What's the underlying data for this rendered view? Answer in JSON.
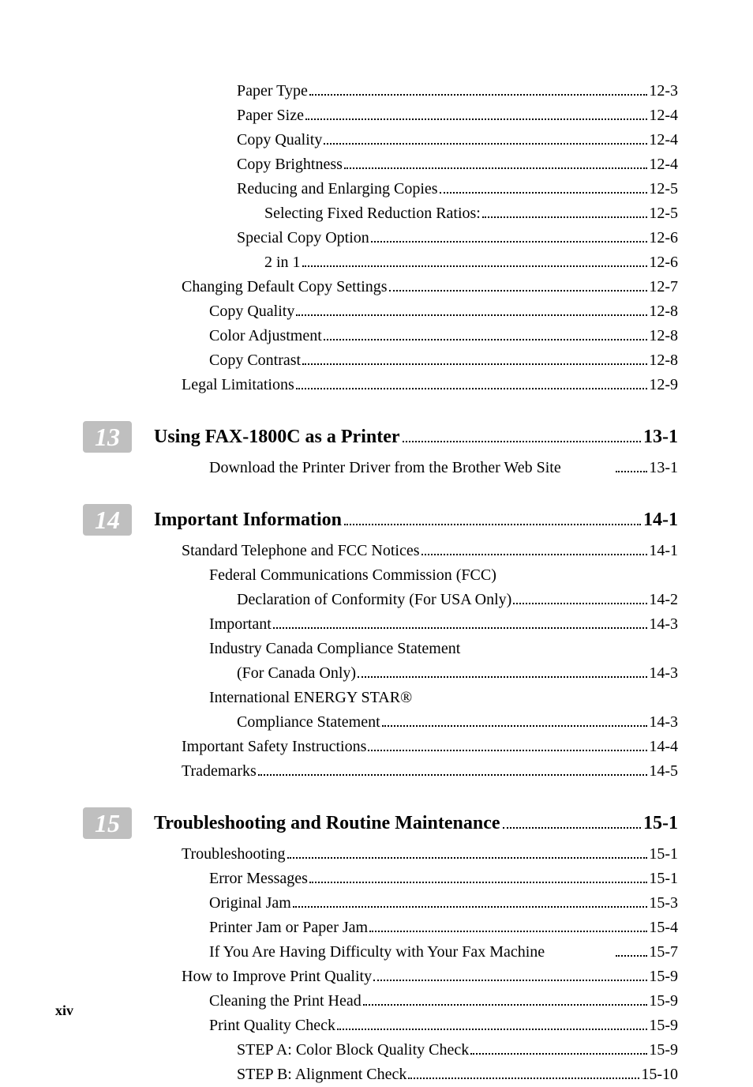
{
  "section12": {
    "lines": [
      {
        "indent": 3,
        "text": "Paper Type",
        "page": "12-3",
        "dots": true
      },
      {
        "indent": 3,
        "text": "Paper Size",
        "page": "12-4",
        "dots": true
      },
      {
        "indent": 3,
        "text": "Copy Quality",
        "page": "12-4",
        "dots": true
      },
      {
        "indent": 3,
        "text": "Copy Brightness",
        "page": "12-4",
        "dots": true
      },
      {
        "indent": 3,
        "text": "Reducing and Enlarging Copies",
        "page": "12-5",
        "dots": true
      },
      {
        "indent": 4,
        "text": "Selecting Fixed Reduction Ratios:",
        "page": "12-5",
        "dots": true
      },
      {
        "indent": 3,
        "text": "Special Copy Option",
        "page": "12-6",
        "dots": true
      },
      {
        "indent": 4,
        "text": "2 in 1",
        "page": "12-6",
        "dots": true
      },
      {
        "indent": 1,
        "text": "Changing Default Copy Settings",
        "page": "12-7",
        "dots": true
      },
      {
        "indent": 2,
        "text": "Copy Quality",
        "page": "12-8",
        "dots": true
      },
      {
        "indent": 2,
        "text": "Color Adjustment",
        "page": "12-8",
        "dots": true
      },
      {
        "indent": 2,
        "text": "Copy Contrast",
        "page": "12-8",
        "dots": true
      },
      {
        "indent": 1,
        "text": "Legal Limitations",
        "page": "12-9",
        "dots": true
      }
    ]
  },
  "chapter13": {
    "number": "13",
    "title": "Using FAX-1800C as a Printer",
    "page": "13-1",
    "lines": [
      {
        "indent": 2,
        "text": "Download the Printer Driver from the Brother Web Site",
        "page": "13-1",
        "dots": true,
        "spaced": true
      }
    ]
  },
  "chapter14": {
    "number": "14",
    "title": "Important Information",
    "page": "14-1",
    "lines": [
      {
        "indent": 1,
        "text": "Standard Telephone and FCC Notices",
        "page": "14-1",
        "dots": true
      },
      {
        "indent": 2,
        "text": "Federal Communications Commission (FCC)",
        "page": "",
        "dots": false
      },
      {
        "indent": 3,
        "text": "Declaration of Conformity (For USA Only)",
        "page": "14-2",
        "dots": true
      },
      {
        "indent": 2,
        "text": "Important",
        "page": "14-3",
        "dots": true
      },
      {
        "indent": 2,
        "text": "Industry Canada Compliance Statement",
        "page": "",
        "dots": false
      },
      {
        "indent": 3,
        "text": "(For Canada Only)",
        "page": "14-3",
        "dots": true
      },
      {
        "indent": 2,
        "text": "International ENERGY STAR®",
        "page": "",
        "dots": false
      },
      {
        "indent": 3,
        "text": "Compliance Statement",
        "page": "14-3",
        "dots": true
      },
      {
        "indent": 1,
        "text": "Important Safety Instructions",
        "page": "14-4",
        "dots": true
      },
      {
        "indent": 1,
        "text": "Trademarks",
        "page": "14-5",
        "dots": true
      }
    ]
  },
  "chapter15": {
    "number": "15",
    "title": "Troubleshooting and Routine Maintenance",
    "page": "15-1",
    "lines": [
      {
        "indent": 1,
        "text": "Troubleshooting",
        "page": "15-1",
        "dots": true
      },
      {
        "indent": 2,
        "text": "Error Messages",
        "page": "15-1",
        "dots": true
      },
      {
        "indent": 2,
        "text": "Original Jam",
        "page": "15-3",
        "dots": true
      },
      {
        "indent": 2,
        "text": "Printer Jam or Paper Jam",
        "page": "15-4",
        "dots": true
      },
      {
        "indent": 2,
        "text": "If You Are Having Difficulty with Your Fax Machine",
        "page": "15-7",
        "dots": true,
        "spaced": true
      },
      {
        "indent": 1,
        "text": "How to Improve Print Quality",
        "page": "15-9",
        "dots": true
      },
      {
        "indent": 2,
        "text": "Cleaning the Print Head",
        "page": "15-9",
        "dots": true
      },
      {
        "indent": 2,
        "text": "Print Quality Check",
        "page": "15-9",
        "dots": true
      },
      {
        "indent": 3,
        "text": "STEP A: Color Block Quality Check",
        "page": "15-9",
        "dots": true
      },
      {
        "indent": 3,
        "text": "STEP B: Alignment Check",
        "page": "15-10",
        "dots": true
      }
    ]
  },
  "footer": {
    "pageLabel": "xiv"
  }
}
